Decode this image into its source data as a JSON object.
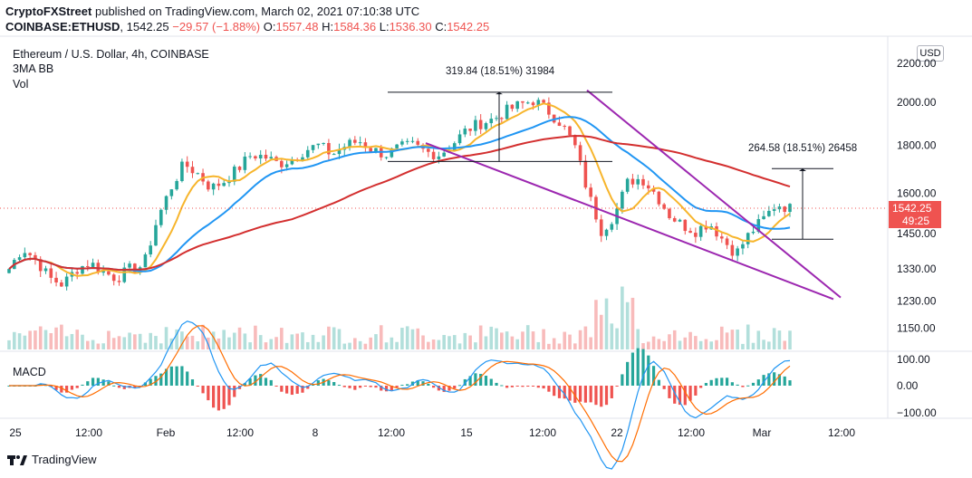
{
  "header": {
    "publisher": "CryptoFXStreet",
    "published_text": "published on TradingView.com, March 02, 2021 07:10:38 UTC",
    "symbol": "COINBASE:ETHUSD",
    "last": "1542.25",
    "change": "−29.57 (−1.88%)",
    "o_label": "O:",
    "o": "1557.48",
    "h_label": "H:",
    "h": "1584.36",
    "l_label": "L:",
    "l": "1536.30",
    "c_label": "C:",
    "c": "1542.25"
  },
  "legend": {
    "title": "Ethereum / U.S. Dollar, 4h, COINBASE",
    "indicator_1": "3MA BB",
    "indicator_2": "Vol",
    "macd": "MACD"
  },
  "currency_button": "USD",
  "price_label": {
    "value": "1542.25",
    "countdown": "49:25"
  },
  "measure_labels": {
    "top": "319.84 (18.51%) 31984",
    "right": "264.58 (18.51%) 26458"
  },
  "branding": "TradingView",
  "colors": {
    "up": "#26a69a",
    "down": "#ef5350",
    "ma_fast": "#f7b52c",
    "ma_mid": "#2196f3",
    "ma_slow": "#d32f2f",
    "wedge": "#9c27b0",
    "macd": "#2196f3",
    "signal": "#ff6d00",
    "price_tag": "#ef5350"
  },
  "chart_data": {
    "type": "candlestick",
    "symbol": "ETHUSD",
    "timeframe": "4h",
    "y_axis_ticks": [
      "2200.00",
      "2000.00",
      "1800.00",
      "1600.00",
      "1450.00",
      "1330.00",
      "1230.00",
      "1150.00"
    ],
    "y_axis_scale": "log",
    "x_axis_ticks": [
      "25",
      "12:00",
      "Feb",
      "12:00",
      "8",
      "12:00",
      "15",
      "12:00",
      "22",
      "12:00",
      "Mar",
      "12:00"
    ],
    "macd_axis_ticks": [
      "100.00",
      "0.00",
      "−100.00"
    ],
    "closes_approx": [
      1330,
      1400,
      1360,
      1300,
      1280,
      1330,
      1350,
      1320,
      1300,
      1330,
      1340,
      1500,
      1620,
      1720,
      1680,
      1620,
      1650,
      1700,
      1760,
      1750,
      1720,
      1740,
      1780,
      1800,
      1760,
      1800,
      1820,
      1780,
      1760,
      1790,
      1800,
      1770,
      1760,
      1810,
      1870,
      1900,
      1920,
      1960,
      1990,
      2010,
      1960,
      1900,
      1800,
      1600,
      1460,
      1520,
      1650,
      1660,
      1600,
      1520,
      1480,
      1460,
      1490,
      1430,
      1380,
      1450,
      1500,
      1560,
      1542
    ],
    "annotations": {
      "falling_wedge_upper": "from ~2060 on Feb 19 down to ~1240",
      "falling_wedge_lower": "from ~1810 on Feb 13 down to ~1235",
      "measured_move_top": "319.84 (18.51%) 31984",
      "measured_move_right": "264.58 (18.51%) 26458",
      "target_line_right": 1700
    },
    "last_price": 1542.25
  }
}
